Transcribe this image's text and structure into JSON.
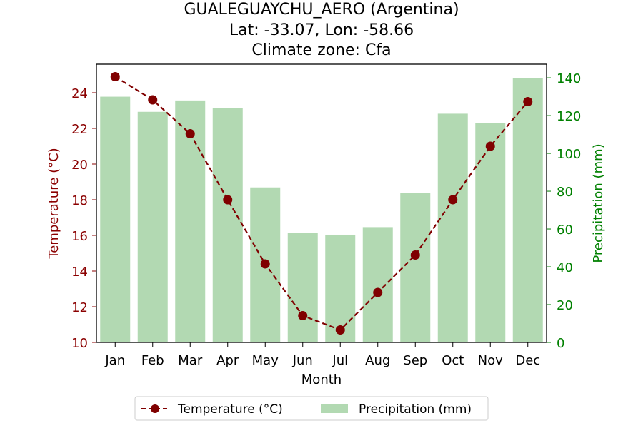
{
  "chart_data": {
    "type": "bar+line",
    "title_lines": [
      "GUALEGUAYCHU_AERO (Argentina)",
      "Lat: -33.07, Lon: -58.66",
      "Climate zone: Cfa"
    ],
    "xlabel": "Month",
    "ylabel_left": "Temperature (°C)",
    "ylabel_right": "Precipitation (mm)",
    "categories": [
      "Jan",
      "Feb",
      "Mar",
      "Apr",
      "May",
      "Jun",
      "Jul",
      "Aug",
      "Sep",
      "Oct",
      "Nov",
      "Dec"
    ],
    "temperature": {
      "name": "Temperature (°C)",
      "color": "#800000",
      "values": [
        24.9,
        23.6,
        21.7,
        18.0,
        14.4,
        11.5,
        10.7,
        12.8,
        14.9,
        18.0,
        21.0,
        23.5
      ]
    },
    "precipitation": {
      "name": "Precipitation (mm)",
      "color": "#b2d9b2",
      "values": [
        130,
        122,
        128,
        124,
        82,
        58,
        57,
        61,
        79,
        121,
        116,
        140
      ]
    },
    "ylim_left": [
      10,
      25.6
    ],
    "yticks_left": [
      10,
      12,
      14,
      16,
      18,
      20,
      22,
      24
    ],
    "ylim_right": [
      0,
      147.2
    ],
    "yticks_right": [
      0,
      20,
      40,
      60,
      80,
      100,
      120,
      140
    ],
    "left_axis_color": "#8b0000",
    "right_axis_color": "#008000",
    "legend_position": "bottom-center"
  }
}
